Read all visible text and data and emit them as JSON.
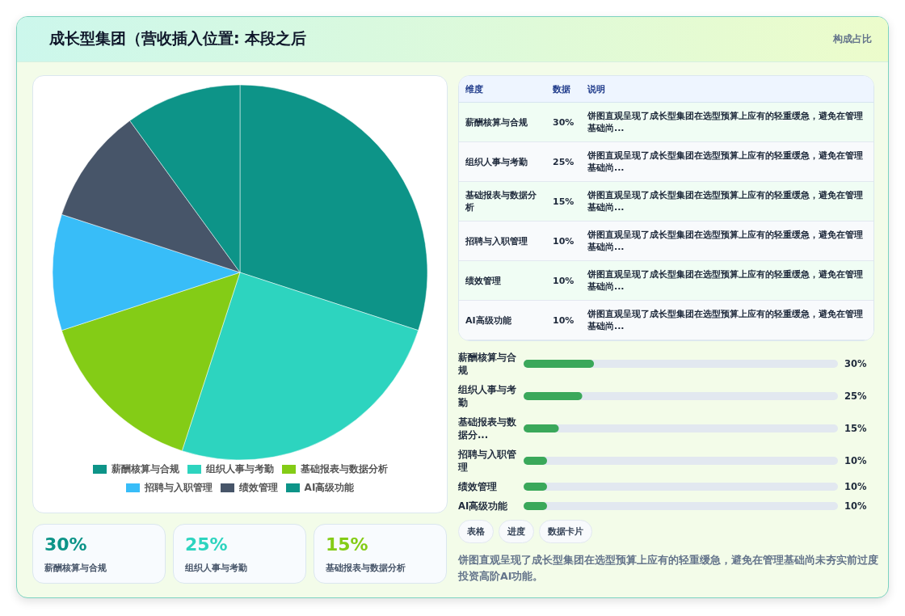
{
  "chart_data": [
    {
      "type": "other",
      "title": "成长型集团（营收插入位置: 本段之后",
      "subtitle": "构成占比"
    },
    {
      "type": "pie",
      "categories": [
        "薪酬核算与合规",
        "组织人事与考勤",
        "基础报表与数据分析",
        "招聘与入职管理",
        "绩效管理",
        "AI高级功能"
      ],
      "values": [
        30,
        25,
        15,
        10,
        10,
        10
      ],
      "colors": [
        "#0d9488",
        "#2dd4bf",
        "#84cc16",
        "#38bdf8",
        "#475569",
        "#0d9488"
      ],
      "legend": "bottom"
    },
    {
      "type": "other",
      "categories": [
        "薪酬核算与合规",
        "组织人事与考勤",
        "基础报表与数据分析",
        "招聘与入职管理",
        "绩效管理",
        "AI高级功能"
      ],
      "value_labels": [
        "30%",
        "25%",
        "15%",
        "10%",
        "10%",
        "10%"
      ],
      "annotations": [
        "维度",
        "数据",
        "说明",
        "饼图直观呈现了成长型集团在选型预算上应有的轻重缓急，避免在管理基础尚...",
        "饼图直观呈现了成长型集团在选型预算上应有的轻重缓急，避免在管理基础尚...",
        "饼图直观呈现了成长型集团在选型预算上应有的轻重缓急，避免在管理基础尚...",
        "饼图直观呈现了成长型集团在选型预算上应有的轻重缓急，避免在管理基础尚...",
        "饼图直观呈现了成长型集团在选型预算上应有的轻重缓急，避免在管理基础尚...",
        "饼图直观呈现了成长型集团在选型预算上应有的轻重缓急，避免在管理基础尚..."
      ]
    },
    {
      "type": "bar",
      "orientation": "horizontal",
      "categories": [
        "薪酬核算与合规",
        "组织人事与考勤",
        "基础报表与数据分...",
        "招聘与入职管理",
        "绩效管理",
        "AI高级功能"
      ],
      "values": [
        30,
        25,
        15,
        10,
        10,
        10
      ],
      "value_labels": [
        "30%",
        "25%",
        "15%",
        "10%",
        "10%",
        "10%"
      ],
      "color": "#3aa85a",
      "xlim": [
        0,
        134
      ],
      "annotations": [
        "表格",
        "进度",
        "数据卡片",
        "饼图直观呈现了成长型集团在选型预算上应有的轻重缓急，避免在管理基础尚未夯实前过度投资高阶AI功能。"
      ]
    },
    {
      "type": "other",
      "categories": [
        "薪酬核算与合规",
        "组织人事与考勤",
        "基础报表与数据分析"
      ],
      "value_labels": [
        "30%",
        "25%",
        "15%"
      ]
    }
  ]
}
